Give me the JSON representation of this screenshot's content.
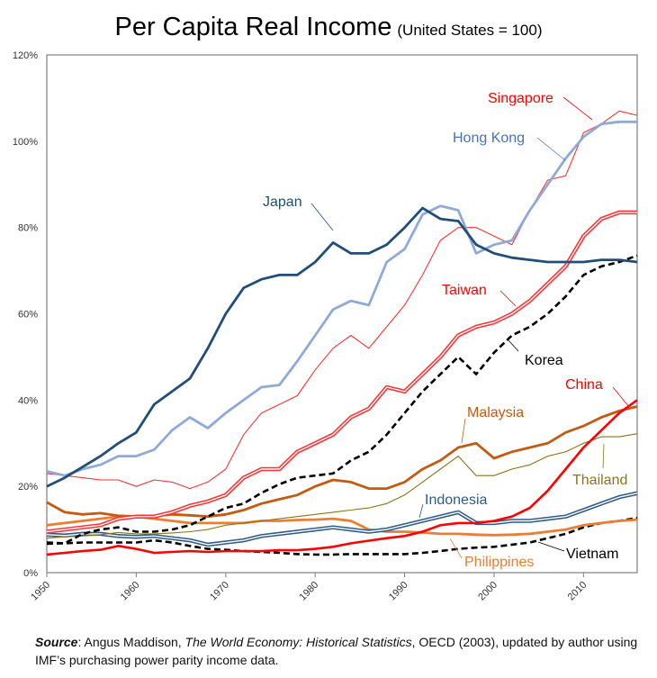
{
  "title": "Per Capita Real Income",
  "subtitle": "(United States = 100)",
  "source": {
    "prefix": "Source",
    "text_1": ": Angus Maddison, ",
    "book": "The World Economy: Historical Statistics",
    "text_2": ", OECD (2003), updated by author using IMF’s purchasing power parity income data."
  },
  "chart_data": {
    "type": "line",
    "title": "Per Capita Real Income",
    "subtitle": "(United States = 100)",
    "xlabel": "",
    "ylabel": "",
    "xlim": [
      1950,
      2016
    ],
    "ylim": [
      0,
      120
    ],
    "x_ticks": [
      1950,
      1960,
      1970,
      1980,
      1990,
      2000,
      2010
    ],
    "x_tick_labels": [
      "1950",
      "1960",
      "1970",
      "1980",
      "1990",
      "2000",
      "2010"
    ],
    "y_ticks": [
      0,
      20,
      40,
      60,
      80,
      100,
      120
    ],
    "y_tick_labels": [
      "0%",
      "20%",
      "40%",
      "60%",
      "80%",
      "100%",
      "120%"
    ],
    "grid": false,
    "legend": "direct labels with leader lines",
    "x": [
      1950,
      1952,
      1954,
      1956,
      1958,
      1960,
      1962,
      1964,
      1966,
      1968,
      1970,
      1972,
      1974,
      1976,
      1978,
      1980,
      1982,
      1984,
      1986,
      1988,
      1990,
      1992,
      1994,
      1996,
      1998,
      2000,
      2002,
      2004,
      2006,
      2008,
      2010,
      2012,
      2014,
      2016
    ],
    "series": [
      {
        "name": "Japan",
        "color": "#1f4e79",
        "style": "solid-thick",
        "values": [
          20,
          22,
          24.5,
          27,
          30,
          32.5,
          39,
          42,
          45,
          52,
          60,
          66,
          68,
          69,
          69,
          72,
          76.5,
          74,
          74,
          76,
          80,
          84.5,
          82,
          81.5,
          76,
          74,
          73,
          72.5,
          72,
          72,
          72,
          72.5,
          72.5,
          72
        ]
      },
      {
        "name": "Hong Kong",
        "color": "#8eaadb",
        "style": "solid-thick",
        "values": [
          23.5,
          22.5,
          24,
          25,
          27,
          27,
          28.5,
          33,
          36,
          33.5,
          37,
          40,
          43,
          43.5,
          49,
          55,
          61,
          63,
          62,
          72,
          75,
          83,
          85,
          84,
          74,
          76,
          77,
          84,
          90,
          96,
          101,
          104,
          104.5,
          104.5
        ]
      },
      {
        "name": "Singapore",
        "color": "#ff3333",
        "style": "solid-thin",
        "values": [
          23,
          22.5,
          22,
          21.5,
          21.5,
          20,
          21.5,
          21,
          19.5,
          21,
          24,
          32,
          37,
          39,
          41,
          47,
          52,
          55,
          52,
          57,
          62,
          69,
          77,
          80,
          80,
          78,
          76,
          84,
          91,
          92,
          102,
          104,
          107,
          106
        ]
      },
      {
        "name": "Taiwan",
        "color": "#ff3333",
        "style": "double",
        "values": [
          9.5,
          10,
          10.5,
          11,
          12.5,
          13,
          13,
          14,
          15.5,
          16.5,
          18,
          22,
          24,
          24,
          28,
          30,
          32,
          36,
          38,
          43,
          42,
          46,
          50,
          55,
          57,
          58,
          60,
          63,
          67,
          71,
          78,
          82,
          83.5,
          83.5
        ]
      },
      {
        "name": "Korea",
        "color": "#000000",
        "style": "dashed",
        "values": [
          7,
          6.8,
          9,
          10,
          10.5,
          9.5,
          9.5,
          10,
          11,
          13,
          15,
          16,
          18.5,
          20.5,
          22,
          22.5,
          23,
          26,
          28,
          32,
          37,
          42,
          46,
          50,
          46,
          51,
          55,
          57,
          60,
          64,
          69,
          71,
          72,
          73.5
        ]
      },
      {
        "name": "China",
        "color": "#ff0000",
        "style": "solid-medium",
        "values": [
          4.2,
          4.6,
          5,
          5.3,
          6.2,
          5.5,
          4.6,
          4.8,
          5,
          4.8,
          5,
          5,
          5,
          5.2,
          5.2,
          5.5,
          6,
          6.8,
          7.4,
          8,
          8.5,
          9.5,
          11,
          11.5,
          11.5,
          12,
          13,
          15,
          19,
          24,
          29,
          33,
          37,
          40
        ]
      },
      {
        "name": "Malaysia",
        "color": "#c55a11",
        "style": "solid-thick",
        "values": [
          16.3,
          14,
          13.5,
          13.8,
          13.2,
          13,
          13.2,
          13.5,
          13.3,
          13,
          13.5,
          14.5,
          16,
          17,
          18,
          20,
          21.5,
          21,
          19.5,
          19.5,
          21,
          24,
          26,
          29,
          30,
          26.5,
          28,
          29,
          30,
          32.5,
          34,
          36,
          37.5,
          38.5
        ]
      },
      {
        "name": "Thailand",
        "color": "#8c7418",
        "style": "solid-thin",
        "values": [
          8,
          8.3,
          8.5,
          8.8,
          9.3,
          9,
          9,
          9.2,
          9.5,
          10,
          11,
          11.5,
          12,
          12.5,
          13,
          13.5,
          14,
          14.5,
          15,
          16,
          18,
          21,
          24,
          27,
          22.5,
          22.5,
          24,
          25,
          27,
          28,
          30,
          31.5,
          31.5,
          32.2
        ]
      },
      {
        "name": "Indonesia",
        "color": "#2e5b8c",
        "style": "double",
        "values": [
          8.8,
          8.6,
          9,
          9,
          8.5,
          8.3,
          8.5,
          8,
          7.5,
          6.5,
          7,
          7.5,
          8.5,
          9,
          9.5,
          10,
          10.5,
          10,
          9.5,
          10,
          11,
          12,
          13,
          14,
          11.5,
          11.5,
          12,
          12,
          12.5,
          13,
          14.5,
          16,
          17.5,
          18.4
        ]
      },
      {
        "name": "Philippines",
        "color": "#ed7d31",
        "style": "solid-thick",
        "values": [
          11,
          11.5,
          12,
          12.5,
          13,
          13,
          12.5,
          12,
          11.5,
          11.5,
          11.5,
          11.5,
          12,
          12,
          12.2,
          12.3,
          12.5,
          12,
          10,
          9.5,
          9.5,
          9.3,
          9,
          9,
          8.8,
          8.7,
          8.8,
          9,
          9.5,
          10,
          11,
          11.5,
          12,
          12.3
        ]
      },
      {
        "name": "Vietnam",
        "color": "#000000",
        "style": "dashed",
        "values": [
          6.7,
          6.8,
          7,
          7,
          7,
          7,
          7.5,
          7,
          6.2,
          5.5,
          5.3,
          5,
          4.8,
          4.6,
          4.3,
          4.2,
          4.2,
          4.3,
          4.3,
          4.3,
          4.3,
          4.6,
          5,
          5.5,
          5.8,
          6,
          6.5,
          7,
          8,
          9,
          10.5,
          11.5,
          12,
          12.7
        ]
      }
    ],
    "annotations": [
      {
        "label": "Singapore",
        "color": "#ff0000"
      },
      {
        "label": "Hong Kong",
        "color": "#4472c4"
      },
      {
        "label": "Japan",
        "color": "#1f4e79"
      },
      {
        "label": "Taiwan",
        "color": "#ff0000"
      },
      {
        "label": "Korea",
        "color": "#000000"
      },
      {
        "label": "China",
        "color": "#ff0000"
      },
      {
        "label": "Malaysia",
        "color": "#c55a11"
      },
      {
        "label": "Thailand",
        "color": "#8c7418"
      },
      {
        "label": "Indonesia",
        "color": "#2e5b8c"
      },
      {
        "label": "Philippines",
        "color": "#ed7d31"
      },
      {
        "label": "Vietnam",
        "color": "#000000"
      }
    ]
  }
}
